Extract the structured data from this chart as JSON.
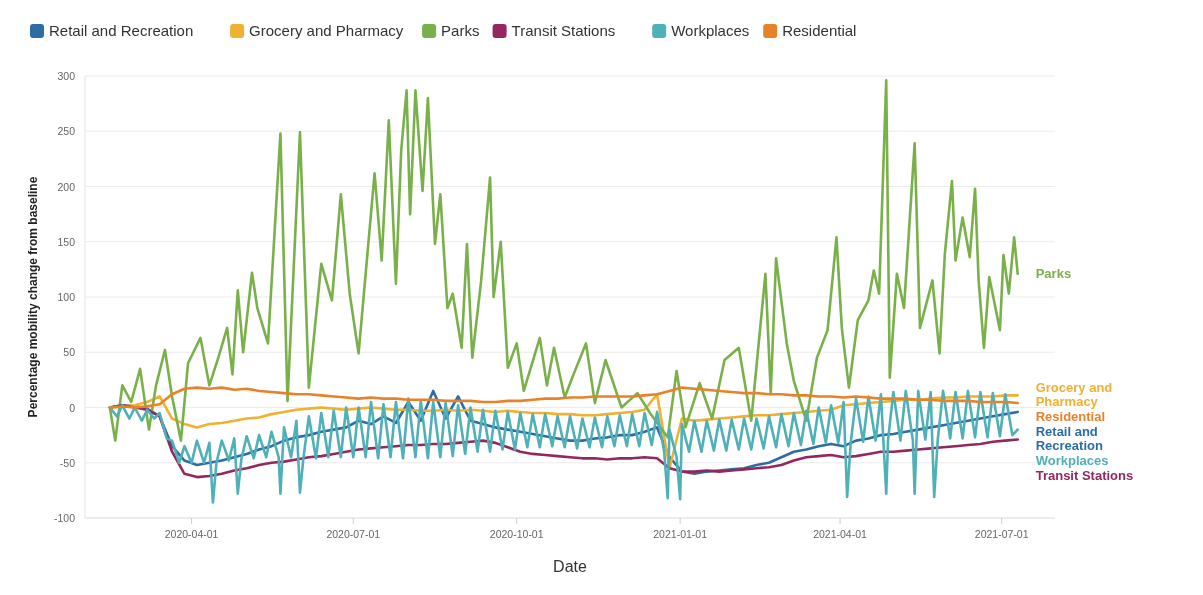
{
  "chart_data": {
    "type": "line",
    "xlabel": "Date",
    "ylabel": "Percentage mobility change from baseline",
    "xlim": [
      "2020-02-01",
      "2021-07-31"
    ],
    "xticks": [
      "2020-04-01",
      "2020-07-01",
      "2020-10-01",
      "2021-01-01",
      "2021-04-01",
      "2021-07-01"
    ],
    "ylim": [
      -100,
      300
    ],
    "yticks": [
      -100,
      -50,
      0,
      50,
      100,
      150,
      200,
      250,
      300
    ],
    "grid": "y",
    "legend": "top",
    "line_style": "solid",
    "x": [
      "2020-02-15",
      "2020-02-22",
      "2020-02-29",
      "2020-03-07",
      "2020-03-14",
      "2020-03-21",
      "2020-03-28",
      "2020-04-04",
      "2020-04-11",
      "2020-04-18",
      "2020-04-25",
      "2020-05-02",
      "2020-05-09",
      "2020-05-16",
      "2020-05-23",
      "2020-05-30",
      "2020-06-06",
      "2020-06-13",
      "2020-06-20",
      "2020-06-27",
      "2020-07-04",
      "2020-07-11",
      "2020-07-18",
      "2020-07-25",
      "2020-08-01",
      "2020-08-08",
      "2020-08-15",
      "2020-08-22",
      "2020-08-29",
      "2020-09-05",
      "2020-09-12",
      "2020-09-19",
      "2020-09-26",
      "2020-10-03",
      "2020-10-10",
      "2020-10-17",
      "2020-10-24",
      "2020-10-31",
      "2020-11-07",
      "2020-11-14",
      "2020-11-21",
      "2020-11-28",
      "2020-12-05",
      "2020-12-12",
      "2020-12-19",
      "2020-12-26",
      "2021-01-02",
      "2021-01-09",
      "2021-01-16",
      "2021-01-23",
      "2021-01-30",
      "2021-02-06",
      "2021-02-13",
      "2021-02-20",
      "2021-02-27",
      "2021-03-06",
      "2021-03-13",
      "2021-03-20",
      "2021-03-27",
      "2021-04-03",
      "2021-04-10",
      "2021-04-17",
      "2021-04-24",
      "2021-05-01",
      "2021-05-08",
      "2021-05-15",
      "2021-05-22",
      "2021-05-29",
      "2021-06-05",
      "2021-06-12",
      "2021-06-19",
      "2021-06-26",
      "2021-07-03",
      "2021-07-10"
    ],
    "series": [
      {
        "name": "Retail and Recreation",
        "color": "#2e6da4",
        "values": [
          0,
          2,
          1,
          -1,
          -8,
          -35,
          -48,
          -52,
          -50,
          -48,
          -45,
          -42,
          -38,
          -35,
          -30,
          -27,
          -25,
          -22,
          -20,
          -18,
          -12,
          -15,
          -8,
          -14,
          5,
          -12,
          15,
          -10,
          10,
          -12,
          -15,
          -18,
          -20,
          -22,
          -24,
          -26,
          -28,
          -30,
          -30,
          -28,
          -27,
          -25,
          -25,
          -22,
          -18,
          -45,
          -58,
          -60,
          -58,
          -57,
          -56,
          -55,
          -52,
          -50,
          -45,
          -40,
          -38,
          -35,
          -33,
          -35,
          -30,
          -28,
          -25,
          -24,
          -22,
          -20,
          -18,
          -16,
          -14,
          -12,
          -10,
          -8,
          -6,
          -4
        ]
      },
      {
        "name": "Grocery and Pharmacy",
        "color": "#f0b030",
        "values": [
          0,
          1,
          2,
          5,
          10,
          -10,
          -15,
          -18,
          -15,
          -14,
          -12,
          -10,
          -9,
          -6,
          -4,
          -2,
          -1,
          0,
          -1,
          -2,
          -1,
          0,
          -1,
          -2,
          -2,
          -3,
          -3,
          -2,
          -3,
          -2,
          -3,
          -4,
          -3,
          -4,
          -5,
          -5,
          -6,
          -6,
          -7,
          -7,
          -6,
          -5,
          -4,
          -2,
          12,
          -55,
          -10,
          -12,
          -11,
          -10,
          -9,
          -8,
          -7,
          -7,
          -6,
          -5,
          -4,
          -3,
          -2,
          2,
          3,
          4,
          5,
          6,
          7,
          7,
          8,
          9,
          9,
          10,
          10,
          10,
          11,
          11
        ]
      },
      {
        "name": "Parks",
        "color": "#7ab04a",
        "x": [
          "2020-02-15",
          "2020-02-18",
          "2020-02-22",
          "2020-02-27",
          "2020-03-03",
          "2020-03-08",
          "2020-03-12",
          "2020-03-17",
          "2020-03-21",
          "2020-03-26",
          "2020-03-30",
          "2020-04-06",
          "2020-04-11",
          "2020-04-16",
          "2020-04-21",
          "2020-04-24",
          "2020-04-27",
          "2020-04-30",
          "2020-05-05",
          "2020-05-08",
          "2020-05-14",
          "2020-05-21",
          "2020-05-25",
          "2020-06-01",
          "2020-06-06",
          "2020-06-13",
          "2020-06-19",
          "2020-06-24",
          "2020-06-29",
          "2020-07-04",
          "2020-07-13",
          "2020-07-17",
          "2020-07-21",
          "2020-07-25",
          "2020-07-28",
          "2020-07-31",
          "2020-08-02",
          "2020-08-05",
          "2020-08-09",
          "2020-08-12",
          "2020-08-16",
          "2020-08-19",
          "2020-08-23",
          "2020-08-26",
          "2020-08-31",
          "2020-09-03",
          "2020-09-06",
          "2020-09-11",
          "2020-09-16",
          "2020-09-18",
          "2020-09-22",
          "2020-09-26",
          "2020-10-01",
          "2020-10-05",
          "2020-10-14",
          "2020-10-18",
          "2020-10-22",
          "2020-10-28",
          "2020-11-02",
          "2020-11-09",
          "2020-11-14",
          "2020-11-20",
          "2020-11-29",
          "2020-12-08",
          "2020-12-15",
          "2020-12-25",
          "2020-12-30",
          "2021-01-04",
          "2021-01-12",
          "2021-01-19",
          "2021-01-26",
          "2021-02-03",
          "2021-02-10",
          "2021-02-18",
          "2021-02-21",
          "2021-02-24",
          "2021-03-02",
          "2021-03-06",
          "2021-03-13",
          "2021-03-19",
          "2021-03-25",
          "2021-03-30",
          "2021-04-02",
          "2021-04-06",
          "2021-04-11",
          "2021-04-17",
          "2021-04-20",
          "2021-04-23",
          "2021-04-27",
          "2021-04-29",
          "2021-05-03",
          "2021-05-07",
          "2021-05-13",
          "2021-05-16",
          "2021-05-23",
          "2021-05-27",
          "2021-05-30",
          "2021-06-03",
          "2021-06-05",
          "2021-06-09",
          "2021-06-13",
          "2021-06-16",
          "2021-06-18",
          "2021-06-21",
          "2021-06-24",
          "2021-06-30",
          "2021-07-02",
          "2021-07-05",
          "2021-07-08",
          "2021-07-10"
        ],
        "values": [
          0,
          -30,
          20,
          5,
          35,
          -20,
          20,
          52,
          10,
          -30,
          40,
          63,
          20,
          45,
          72,
          30,
          106,
          50,
          122,
          90,
          58,
          248,
          6,
          249,
          18,
          130,
          97,
          193,
          103,
          49,
          212,
          133,
          260,
          112,
          233,
          287,
          175,
          287,
          196,
          280,
          148,
          193,
          90,
          103,
          54,
          148,
          45,
          115,
          208,
          100,
          150,
          36,
          58,
          15,
          63,
          20,
          54,
          9,
          30,
          58,
          4,
          43,
          0,
          13,
          -5,
          -27,
          33,
          -18,
          22,
          -10,
          43,
          54,
          -12,
          121,
          13,
          135,
          58,
          24,
          -12,
          45,
          70,
          154,
          72,
          18,
          79,
          97,
          124,
          103,
          296,
          27,
          121,
          90,
          239,
          72,
          115,
          49,
          139,
          205,
          133,
          172,
          136,
          198,
          115,
          54,
          118,
          70,
          138,
          103,
          154,
          121
        ]
      },
      {
        "name": "Transit Stations",
        "color": "#93285f",
        "values": [
          0,
          2,
          0,
          -2,
          -8,
          -40,
          -60,
          -63,
          -62,
          -60,
          -57,
          -55,
          -52,
          -50,
          -49,
          -47,
          -45,
          -44,
          -42,
          -40,
          -38,
          -37,
          -36,
          -35,
          -34,
          -34,
          -33,
          -33,
          -32,
          -31,
          -30,
          -32,
          -36,
          -40,
          -42,
          -43,
          -44,
          -45,
          -46,
          -46,
          -47,
          -46,
          -46,
          -45,
          -46,
          -55,
          -58,
          -58,
          -57,
          -58,
          -57,
          -56,
          -55,
          -54,
          -52,
          -48,
          -45,
          -44,
          -43,
          -45,
          -44,
          -42,
          -40,
          -40,
          -39,
          -38,
          -37,
          -36,
          -35,
          -34,
          -33,
          -31,
          -30,
          -29
        ]
      },
      {
        "name": "Workplaces",
        "color": "#4fb0b8",
        "x": [
          "2020-02-15",
          "2020-02-19",
          "2020-02-22",
          "2020-02-26",
          "2020-02-29",
          "2020-03-04",
          "2020-03-07",
          "2020-03-11",
          "2020-03-14",
          "2020-03-18",
          "2020-03-21",
          "2020-03-25",
          "2020-03-28",
          "2020-04-01",
          "2020-04-04",
          "2020-04-08",
          "2020-04-11",
          "2020-04-13",
          "2020-04-15",
          "2020-04-18",
          "2020-04-22",
          "2020-04-25",
          "2020-04-27",
          "2020-04-29",
          "2020-05-02",
          "2020-05-06",
          "2020-05-09",
          "2020-05-13",
          "2020-05-16",
          "2020-05-20",
          "2020-05-21",
          "2020-05-23",
          "2020-05-27",
          "2020-05-30",
          "2020-06-01",
          "2020-06-03",
          "2020-06-06",
          "2020-06-10",
          "2020-06-13",
          "2020-06-17",
          "2020-06-20",
          "2020-06-24",
          "2020-06-27",
          "2020-07-01",
          "2020-07-04",
          "2020-07-08",
          "2020-07-11",
          "2020-07-15",
          "2020-07-18",
          "2020-07-22",
          "2020-07-25",
          "2020-07-29",
          "2020-08-01",
          "2020-08-05",
          "2020-08-08",
          "2020-08-12",
          "2020-08-15",
          "2020-08-19",
          "2020-08-22",
          "2020-08-26",
          "2020-08-29",
          "2020-09-02",
          "2020-09-05",
          "2020-09-09",
          "2020-09-12",
          "2020-09-16",
          "2020-09-19",
          "2020-09-23",
          "2020-09-26",
          "2020-09-30",
          "2020-10-03",
          "2020-10-07",
          "2020-10-10",
          "2020-10-14",
          "2020-10-17",
          "2020-10-21",
          "2020-10-24",
          "2020-10-28",
          "2020-10-31",
          "2020-11-04",
          "2020-11-07",
          "2020-11-11",
          "2020-11-14",
          "2020-11-18",
          "2020-11-21",
          "2020-11-25",
          "2020-11-28",
          "2020-12-02",
          "2020-12-05",
          "2020-12-09",
          "2020-12-12",
          "2020-12-16",
          "2020-12-19",
          "2020-12-23",
          "2020-12-25",
          "2020-12-26",
          "2020-12-30",
          "2021-01-01",
          "2021-01-02",
          "2021-01-06",
          "2021-01-09",
          "2021-01-13",
          "2021-01-16",
          "2021-01-20",
          "2021-01-23",
          "2021-01-27",
          "2021-01-30",
          "2021-02-03",
          "2021-02-06",
          "2021-02-10",
          "2021-02-13",
          "2021-02-17",
          "2021-02-20",
          "2021-02-24",
          "2021-02-27",
          "2021-03-03",
          "2021-03-06",
          "2021-03-10",
          "2021-03-13",
          "2021-03-17",
          "2021-03-20",
          "2021-03-24",
          "2021-03-27",
          "2021-03-31",
          "2021-04-03",
          "2021-04-05",
          "2021-04-07",
          "2021-04-10",
          "2021-04-14",
          "2021-04-17",
          "2021-04-21",
          "2021-04-24",
          "2021-04-27",
          "2021-04-28",
          "2021-05-01",
          "2021-05-05",
          "2021-05-08",
          "2021-05-12",
          "2021-05-13",
          "2021-05-15",
          "2021-05-19",
          "2021-05-22",
          "2021-05-24",
          "2021-05-26",
          "2021-05-29",
          "2021-06-02",
          "2021-06-05",
          "2021-06-09",
          "2021-06-12",
          "2021-06-16",
          "2021-06-19",
          "2021-06-23",
          "2021-06-26",
          "2021-06-30",
          "2021-07-03",
          "2021-07-07",
          "2021-07-10"
        ],
        "values": [
          0,
          -8,
          2,
          -10,
          0,
          -12,
          -2,
          -10,
          -5,
          -28,
          -30,
          -50,
          -35,
          -50,
          -30,
          -50,
          -32,
          -86,
          -50,
          -30,
          -48,
          -28,
          -78,
          -47,
          -26,
          -46,
          -25,
          -45,
          -22,
          -45,
          -78,
          -18,
          -45,
          -12,
          -77,
          -45,
          -8,
          -46,
          -5,
          -45,
          -3,
          -45,
          0,
          -45,
          0,
          -45,
          5,
          -46,
          3,
          -45,
          5,
          -46,
          8,
          -45,
          6,
          -46,
          5,
          -45,
          4,
          -44,
          2,
          -42,
          0,
          -40,
          -2,
          -40,
          -3,
          -38,
          -4,
          -38,
          -5,
          -36,
          -6,
          -36,
          -6,
          -35,
          -8,
          -36,
          -8,
          -37,
          -10,
          -36,
          -9,
          -36,
          -8,
          -35,
          -7,
          -35,
          -6,
          -35,
          -5,
          -34,
          -4,
          -40,
          -82,
          -20,
          -45,
          -83,
          -15,
          -40,
          -12,
          -40,
          -12,
          -39,
          -11,
          -39,
          -11,
          -38,
          -10,
          -38,
          -10,
          -37,
          -8,
          -36,
          -6,
          -35,
          -5,
          -34,
          -3,
          -33,
          0,
          -32,
          2,
          -32,
          5,
          -81,
          -32,
          8,
          -31,
          10,
          -30,
          12,
          -78,
          -30,
          14,
          -30,
          15,
          -30,
          -78,
          15,
          -29,
          14,
          -81,
          -29,
          15,
          -28,
          14,
          -28,
          15,
          -27,
          14,
          -27,
          13,
          -26,
          12,
          -25,
          -20
        ]
      },
      {
        "name": "Residential",
        "color": "#e8822a",
        "values": [
          0,
          1,
          0,
          1,
          3,
          12,
          17,
          18,
          17,
          18,
          16,
          17,
          15,
          14,
          13,
          12,
          12,
          11,
          10,
          9,
          8,
          9,
          8,
          8,
          7,
          7,
          7,
          6,
          6,
          6,
          5,
          5,
          6,
          6,
          7,
          8,
          8,
          9,
          9,
          10,
          10,
          10,
          10,
          11,
          12,
          15,
          18,
          17,
          16,
          15,
          14,
          13,
          13,
          12,
          12,
          11,
          11,
          10,
          10,
          9,
          10,
          9,
          8,
          8,
          8,
          7,
          7,
          6,
          6,
          6,
          5,
          5,
          5,
          4
        ]
      }
    ]
  }
}
